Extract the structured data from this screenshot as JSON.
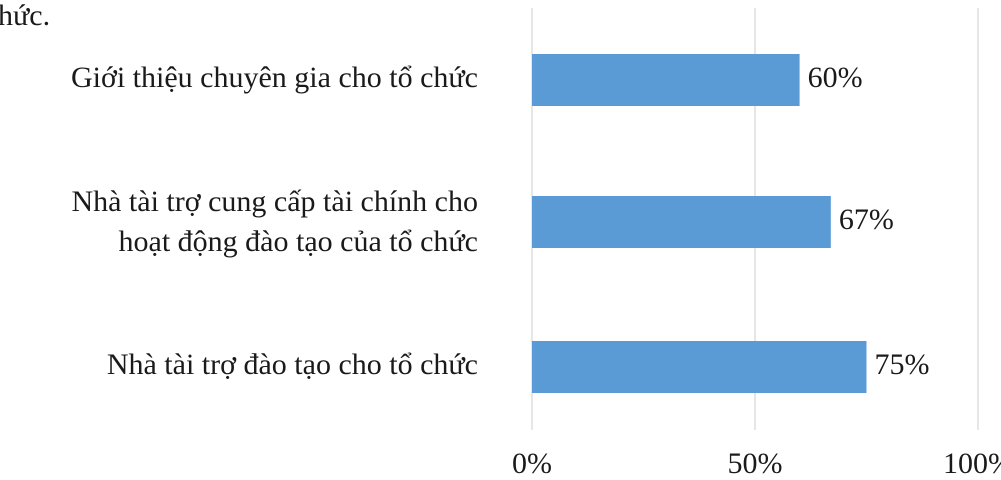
{
  "chart_data": {
    "type": "bar",
    "orientation": "horizontal",
    "annotations": [
      "hức."
    ],
    "categories": [
      "Giới thiệu chuyên gia cho tổ chức",
      [
        "Nhà tài trợ cung cấp tài chính cho",
        "hoạt động đào tạo của tổ chức"
      ],
      "Nhà tài trợ đào tạo cho tổ chức"
    ],
    "values": [
      60,
      67,
      75
    ],
    "value_labels": [
      "60%",
      "67%",
      "75%"
    ],
    "color": "#5b9bd5",
    "xlim": [
      0,
      100
    ],
    "xticks": [
      {
        "value": 0,
        "label": "0%"
      },
      {
        "value": 50,
        "label": "50%"
      },
      {
        "value": 100,
        "label": "100%"
      }
    ],
    "grid": true
  }
}
